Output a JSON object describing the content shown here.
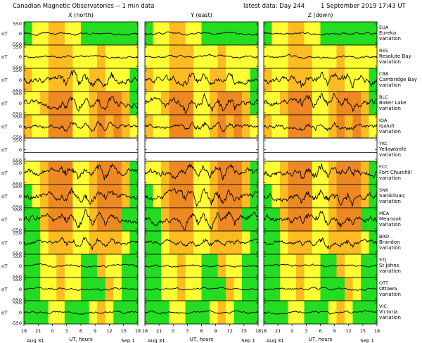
{
  "header": {
    "title": "Canadian Magnetic Observatories -- 1 min data",
    "latest": "latest data: Day 244",
    "date": "1 September 2019 17:43 UT"
  },
  "chart_data": {
    "type": "line",
    "columns": [
      "X (north)",
      "Y (east)",
      "Z (down)"
    ],
    "unit_label": "nT",
    "y_ticks": [
      "550",
      "0",
      "-550"
    ],
    "x_ticks": [
      "18",
      "21",
      "0",
      "3",
      "6",
      "9",
      "12",
      "15",
      "18"
    ],
    "x_ticks_first_col": [
      "18",
      "21",
      "0",
      "3",
      "6",
      "9",
      "12",
      "15",
      "18"
    ],
    "xlabel": "UT, hours",
    "date_left": "Aug 31",
    "date_right": "Sep 1",
    "activity_colors": {
      "quiet": "#22dd22",
      "unsettled": "#ffff33",
      "active": "#ffbb22",
      "storm": "#ee8822"
    },
    "stations": [
      {
        "code": "EUA",
        "name": "Eureka",
        "label": "variation",
        "level": 1,
        "activity": "gyyooyyggggggg",
        "blank": false
      },
      {
        "code": "RES",
        "name": "Resolute Bay",
        "label": "variation",
        "level": 1,
        "activity": "yyyoooyyyoyyyy",
        "blank": false
      },
      {
        "code": "CBB",
        "name": "Cambridge Bay",
        "label": "variation",
        "level": 3,
        "activity": "oyyoooyyooyyyg",
        "blank": false
      },
      {
        "code": "BLC",
        "name": "Baker Lake",
        "label": "variation",
        "level": 3,
        "activity": "yyoOOOyyoOOOog",
        "blank": false
      },
      {
        "code": "IQA",
        "name": "Iqaluit",
        "label": "variation",
        "level": 2,
        "activity": "oyyOOOyyoOoOoy",
        "blank": false
      },
      {
        "code": "YKC",
        "name": "Yellowknife",
        "label": "variation",
        "level": 0,
        "activity": "",
        "blank": true
      },
      {
        "code": "FCC",
        "name": "Fort Churchill",
        "label": "variation",
        "level": 3,
        "activity": "yyoOOOyyoOOOog",
        "blank": false
      },
      {
        "code": "SNK",
        "name": "Sanikiluaq",
        "label": "variation",
        "level": 3,
        "activity": "gyoOOOyyoOOOog",
        "blank": false
      },
      {
        "code": "MEA",
        "name": "Meanook",
        "label": "variation",
        "level": 3,
        "activity": "ggoOOOyyoOOOgg",
        "blank": false
      },
      {
        "code": "BRD",
        "name": "Brandon",
        "label": "variation",
        "level": 2,
        "activity": "ggyoooyyooooyg",
        "blank": false
      },
      {
        "code": "STJ",
        "name": "St Johns",
        "label": "variation",
        "level": 1,
        "activity": "ggyyoyyggoyygg",
        "blank": false
      },
      {
        "code": "OTT",
        "name": "Ottawa",
        "label": "variation",
        "level": 1,
        "activity": "ggyyoyygggoygg",
        "blank": false
      },
      {
        "code": "VIC",
        "name": "Victoria",
        "label": "variation",
        "level": 1,
        "activity": "gggyygggyoyggg",
        "blank": false
      }
    ]
  }
}
